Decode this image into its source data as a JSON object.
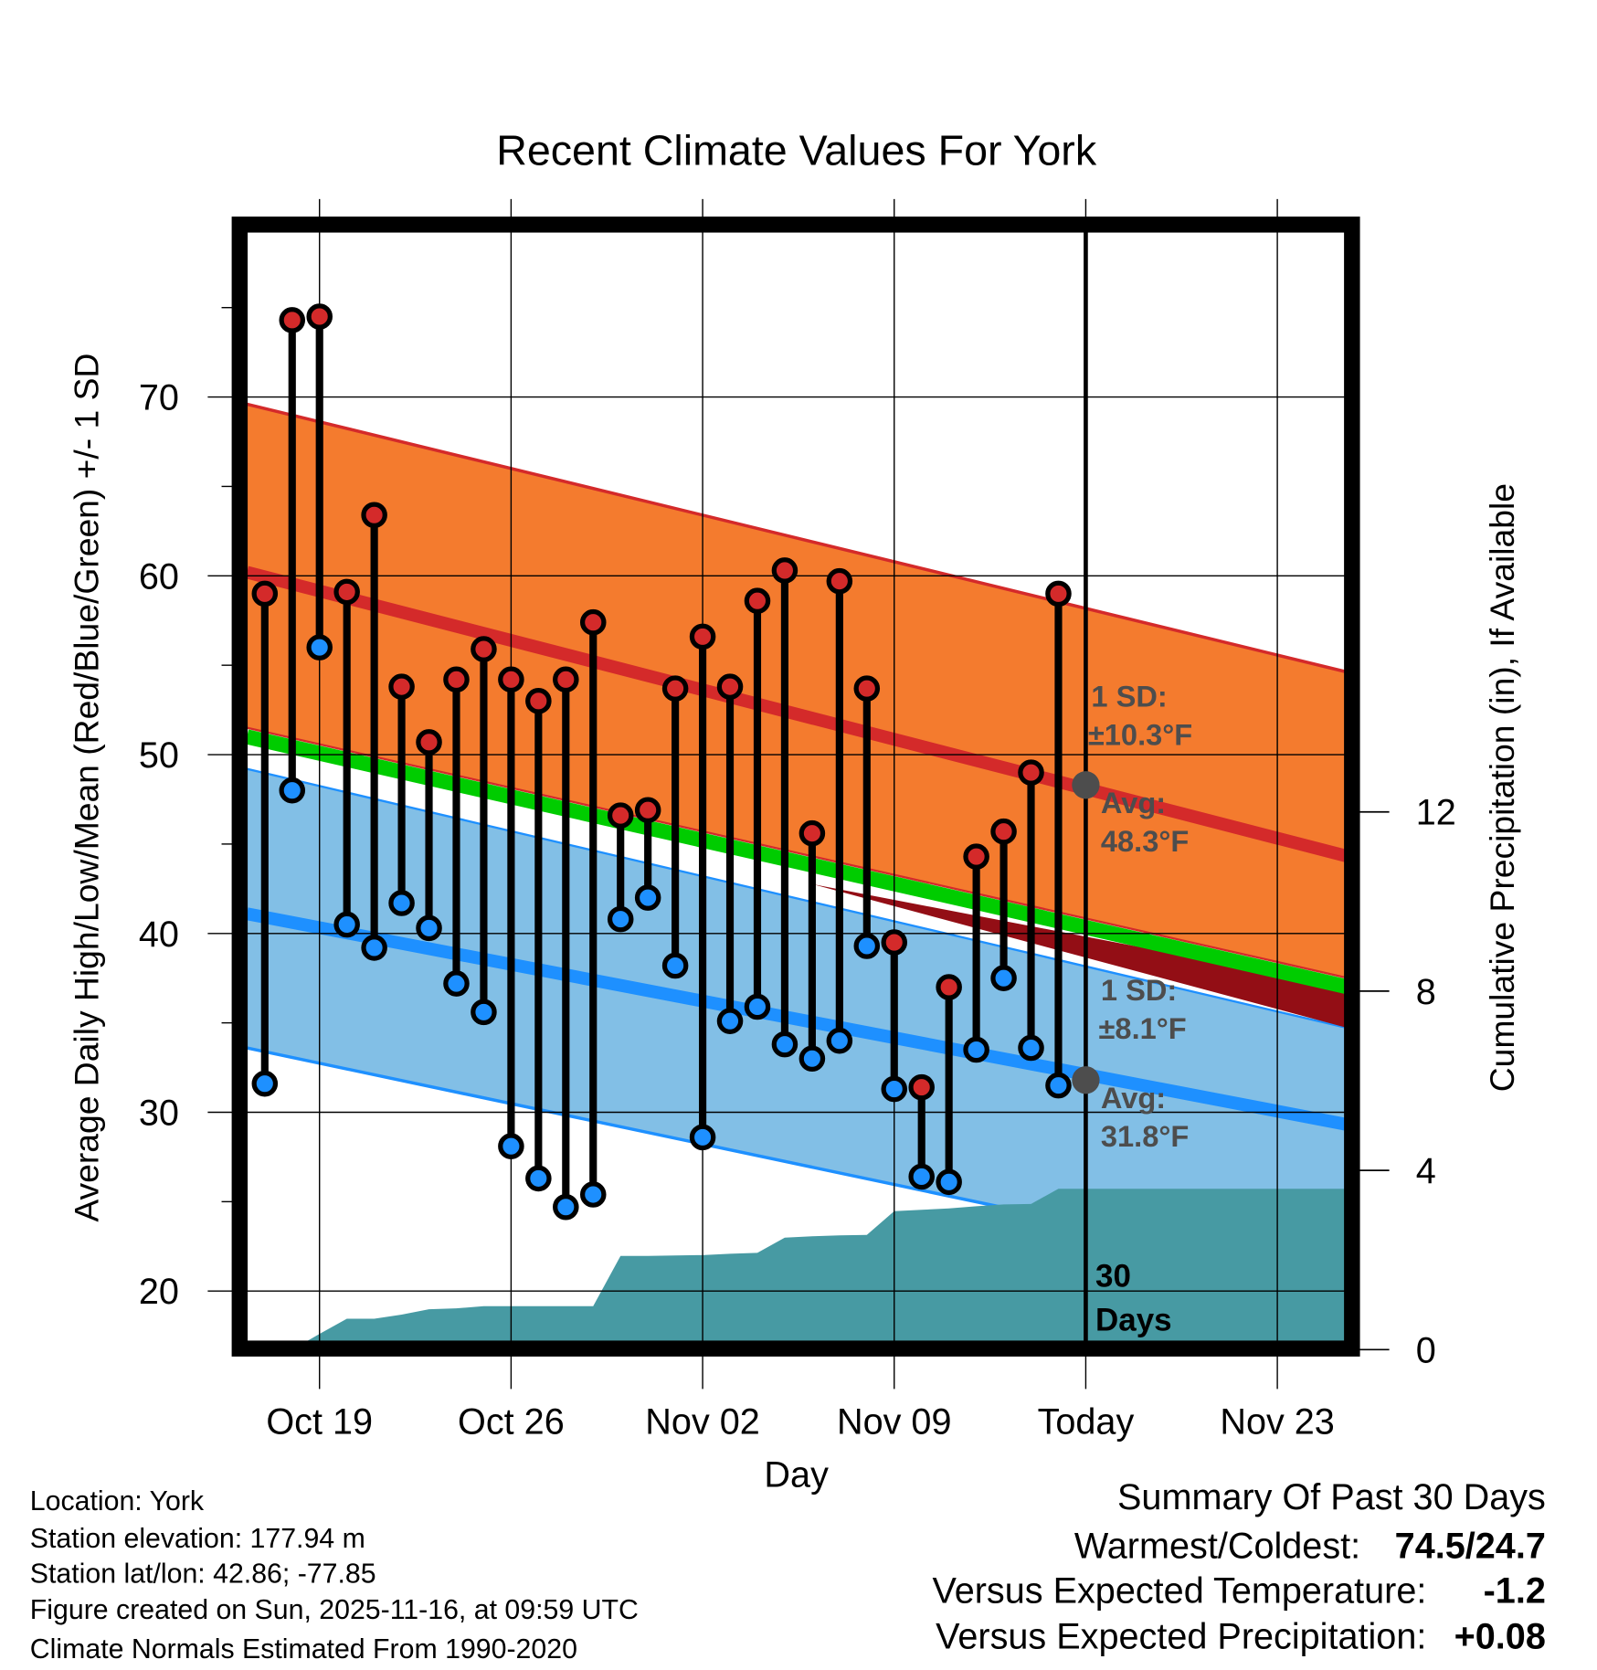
{
  "chart_data": {
    "type": "line",
    "title": "Recent Climate Values For York",
    "xlabel": "Day",
    "ylabel": "Average Daily High/Low/Mean (Red/Blue/Green) +/- 1 SD",
    "y2label": "Cumulative Precipitation (in), If Available",
    "x_unit": "days since Oct 19",
    "xlim": [
      -2.65,
      37.6
    ],
    "ylim": [
      17.2,
      76.0
    ],
    "y2lim": [
      0,
      25
    ],
    "x_ticks": [
      {
        "day": 0,
        "label": "Oct 19"
      },
      {
        "day": 7,
        "label": "Oct 26"
      },
      {
        "day": 14,
        "label": "Nov 02"
      },
      {
        "day": 21,
        "label": "Nov 09"
      },
      {
        "day": 28,
        "label": "Today"
      },
      {
        "day": 35,
        "label": "Nov 23"
      }
    ],
    "y_ticks": [
      20,
      30,
      40,
      50,
      60,
      70
    ],
    "y2_ticks": [
      0,
      4,
      8,
      12
    ],
    "grid": true,
    "today_day": 28,
    "today_label": "30\nDays",
    "colors": {
      "high": "#d42a2a",
      "low": "#1e90ff",
      "mean": "#00cc00",
      "high_band": "#f47b2e",
      "low_band": "#82bfe6",
      "overlap": "#930e15",
      "precip": "#479aa3",
      "avg_marker": "#4d4d4d"
    },
    "normals": {
      "high_upper": [
        69.6,
        54.6
      ],
      "avg_high": [
        60.2,
        44.3
      ],
      "high_lower": [
        51.5,
        37.5
      ],
      "mean": [
        51.0,
        37.0
      ],
      "low_upper": [
        49.2,
        34.7
      ],
      "avg_low": [
        41.1,
        29.3
      ],
      "low_lower": [
        33.6,
        20.6
      ]
    },
    "annotations": {
      "high_sd_title": "1 SD:",
      "high_sd_value": "±10.3°F",
      "high_avg_title": "Avg:",
      "high_avg_value": "48.3°F",
      "low_sd_title": "1 SD:",
      "low_sd_value": "±8.1°F",
      "low_avg_title": "Avg:",
      "low_avg_value": "31.8°F",
      "today_avg_high": 48.3,
      "today_avg_low": 31.8,
      "days_line1": "30",
      "days_line2": "Days"
    },
    "series": [
      {
        "name": "High",
        "days": [
          -2,
          -1,
          0,
          1,
          2,
          3,
          4,
          5,
          6,
          7,
          8,
          9,
          10,
          11,
          12,
          13,
          14,
          15,
          16,
          17,
          18,
          19,
          20,
          21,
          22,
          23,
          24,
          25,
          26,
          27
        ],
        "values": [
          59.0,
          74.3,
          74.5,
          59.1,
          63.4,
          53.8,
          50.7,
          54.2,
          55.9,
          54.2,
          53.0,
          54.2,
          57.4,
          46.6,
          46.9,
          53.7,
          56.6,
          53.8,
          58.6,
          60.3,
          45.6,
          59.7,
          53.7,
          39.5,
          31.4,
          37.0,
          44.3,
          45.7,
          49.0,
          59.0
        ]
      },
      {
        "name": "Low",
        "days": [
          -2,
          -1,
          0,
          1,
          2,
          3,
          4,
          5,
          6,
          7,
          8,
          9,
          10,
          11,
          12,
          13,
          14,
          15,
          16,
          17,
          18,
          19,
          20,
          21,
          22,
          23,
          24,
          25,
          26,
          27
        ],
        "values": [
          31.6,
          48.0,
          56.0,
          40.5,
          39.2,
          41.7,
          40.3,
          37.2,
          35.6,
          28.1,
          26.3,
          24.7,
          25.4,
          40.8,
          42.0,
          38.2,
          28.6,
          35.1,
          35.9,
          33.8,
          33.0,
          34.0,
          39.3,
          31.3,
          26.4,
          26.1,
          33.5,
          37.5,
          33.6,
          31.5
        ]
      },
      {
        "name": "Cumulative Precipitation",
        "days": [
          -1,
          0,
          1,
          2,
          3,
          4,
          5,
          6,
          7,
          8,
          9,
          10,
          11,
          12,
          13,
          14,
          15,
          16,
          17,
          18,
          19,
          20,
          21,
          22,
          23,
          24,
          25,
          26,
          27,
          28
        ],
        "values": [
          0,
          0.35,
          0.69,
          0.69,
          0.78,
          0.9,
          0.92,
          0.97,
          0.97,
          0.97,
          0.97,
          0.97,
          2.09,
          2.09,
          2.1,
          2.11,
          2.14,
          2.16,
          2.5,
          2.53,
          2.55,
          2.56,
          3.09,
          3.12,
          3.15,
          3.2,
          3.24,
          3.25,
          3.59,
          3.59
        ]
      }
    ]
  },
  "footer": {
    "location": "Location: York",
    "elevation": "Station elevation: 177.94 m",
    "latlon": "Station lat/lon: 42.86; -77.85",
    "created": "Figure created on Sun, 2025-11-16, at 09:59 UTC",
    "normals": "Climate Normals Estimated From 1990-2020"
  },
  "summary": {
    "title": "Summary Of Past 30 Days",
    "warm_cold_label": "Warmest/Coldest:",
    "warm_cold_value": "74.5/24.7",
    "temp_label": "Versus Expected Temperature:",
    "temp_value": "-1.2",
    "temp_color": "#1e90ff",
    "precip_label": "Versus Expected Precipitation:",
    "precip_value": "+0.08",
    "precip_color": "#22cc00"
  }
}
